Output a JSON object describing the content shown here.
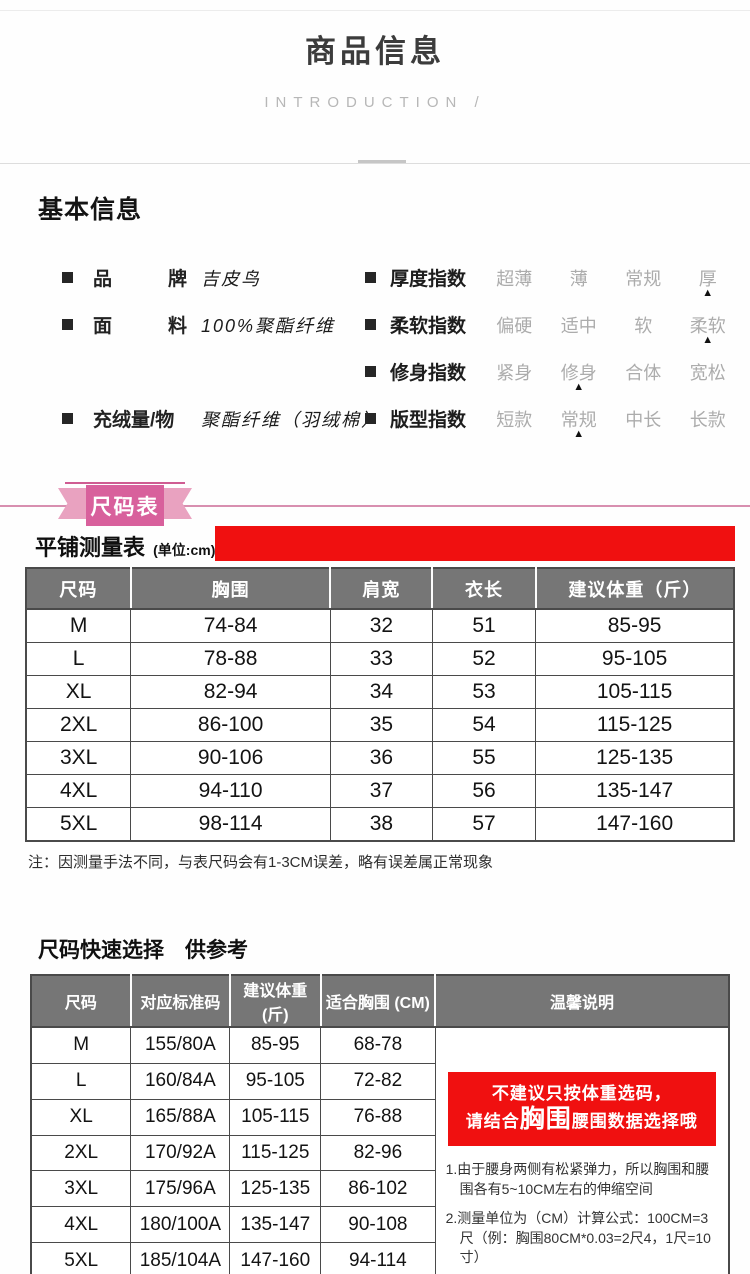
{
  "header": {
    "title": "商品信息",
    "subtitle": "INTRODUCTION /"
  },
  "basic_info": {
    "heading": "基本信息",
    "attributes": [
      {
        "label": "品牌",
        "spread": true,
        "value": "吉皮鸟"
      },
      {
        "label": "面料",
        "spread": true,
        "value": "100%聚酯纤维"
      },
      {
        "label": "充绒量/物",
        "spread": false,
        "value": "聚酯纤维（羽绒棉）"
      }
    ],
    "indices": [
      {
        "label": "厚度指数",
        "options": [
          "超薄",
          "薄",
          "常规",
          "厚"
        ],
        "selected": 3
      },
      {
        "label": "柔软指数",
        "options": [
          "偏硬",
          "适中",
          "软",
          "柔软"
        ],
        "selected": 3
      },
      {
        "label": "修身指数",
        "options": [
          "紧身",
          "修身",
          "合体",
          "宽松"
        ],
        "selected": 1
      },
      {
        "label": "版型指数",
        "options": [
          "短款",
          "常规",
          "中长",
          "长款"
        ],
        "selected": 1
      }
    ]
  },
  "size_section": {
    "ribbon_label": "尺码表",
    "table_title": "平铺测量表",
    "table_unit": "(单位:cm)",
    "table": {
      "headers": [
        "尺码",
        "胸围",
        "肩宽",
        "衣长",
        "建议体重（斤）"
      ],
      "rows": [
        [
          "M",
          "74-84",
          "32",
          "51",
          "85-95"
        ],
        [
          "L",
          "78-88",
          "33",
          "52",
          "95-105"
        ],
        [
          "XL",
          "82-94",
          "34",
          "53",
          "105-115"
        ],
        [
          "2XL",
          "86-100",
          "35",
          "54",
          "115-125"
        ],
        [
          "3XL",
          "90-106",
          "36",
          "55",
          "125-135"
        ],
        [
          "4XL",
          "94-110",
          "37",
          "56",
          "135-147"
        ],
        [
          "5XL",
          "98-114",
          "38",
          "57",
          "147-160"
        ]
      ]
    },
    "note": "注：因测量手法不同，与表尺码会有1-3CM误差，略有误差属正常现象"
  },
  "quick_select": {
    "heading": "尺码快速选择　供参考",
    "table": {
      "headers": [
        "尺码",
        "对应标准码",
        "建议体重 (斤)",
        "适合胸围 (CM)",
        "温馨说明"
      ],
      "rows": [
        [
          "M",
          "155/80A",
          "85-95",
          "68-78"
        ],
        [
          "L",
          "160/84A",
          "95-105",
          "72-82"
        ],
        [
          "XL",
          "165/88A",
          "105-115",
          "76-88"
        ],
        [
          "2XL",
          "170/92A",
          "115-125",
          "82-96"
        ],
        [
          "3XL",
          "175/96A",
          "125-135",
          "86-102"
        ],
        [
          "4XL",
          "180/100A",
          "135-147",
          "90-108"
        ],
        [
          "5XL",
          "185/104A",
          "147-160",
          "94-114"
        ]
      ]
    },
    "warning": {
      "line1": "不建议只按体重选码，",
      "line2_pre": "请结合",
      "line2_emphasis": "胸围",
      "line2_post": "腰围数据选择哦",
      "notes": [
        "1.由于腰身两侧有松紧弹力，所以胸围和腰围各有5~10CM左右的伸缩空间",
        "2.测量单位为（CM）计算公式：100CM=3尺（例：胸围80CM*0.03=2尺4，1尺=10寸）"
      ]
    }
  },
  "icons": {
    "selected_arrow": "▲"
  },
  "colors": {
    "accent_pink": "#d8609c",
    "accent_pink_light": "#e9a2c0",
    "rule_pink": "#d88fb0",
    "banner_red": "#f01010",
    "table_header_bg": "#767676",
    "table_border": "#4a4a4a"
  }
}
